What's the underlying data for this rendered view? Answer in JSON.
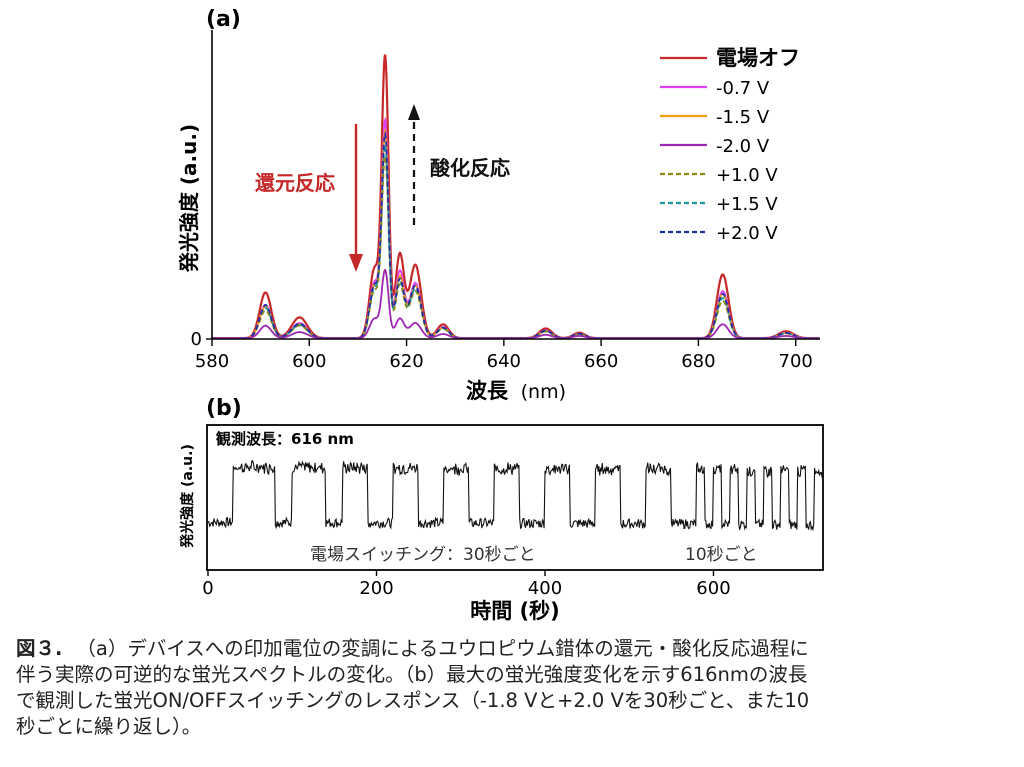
{
  "chart_data": [
    {
      "panel": "(a)",
      "type": "line",
      "xlabel": "波長",
      "xlabel_unit": "(nm)",
      "ylabel": "発光強度 (a.u.)",
      "xlim": [
        580,
        705
      ],
      "ylim": [
        0,
        1.0
      ],
      "x_ticks": [
        580,
        600,
        620,
        640,
        660,
        680,
        700
      ],
      "y_ticks": [
        0
      ],
      "legend_position": "top-right",
      "peaks": [
        {
          "center": 591,
          "width": 1.2
        },
        {
          "center": 598,
          "width": 1.6
        },
        {
          "center": 613.4,
          "width": 1.0
        },
        {
          "center": 615.6,
          "width": 0.7
        },
        {
          "center": 618.6,
          "width": 0.9
        },
        {
          "center": 621.8,
          "width": 1.2
        },
        {
          "center": 627.5,
          "width": 1.2
        },
        {
          "center": 648.6,
          "width": 1.3
        },
        {
          "center": 655.5,
          "width": 1.2
        },
        {
          "center": 685,
          "width": 1.2
        },
        {
          "center": 698,
          "width": 1.5
        }
      ],
      "series": [
        {
          "name": "電場オフ",
          "color": "#c62828",
          "dash": "solid",
          "values": [
            0.165,
            0.075,
            0.25,
            1.0,
            0.3,
            0.265,
            0.05,
            0.035,
            0.02,
            0.23,
            0.025
          ]
        },
        {
          "name": "-0.7 V",
          "color": "#e040fb",
          "dash": "solid",
          "values": [
            0.12,
            0.055,
            0.2,
            0.77,
            0.24,
            0.2,
            0.04,
            0.028,
            0.016,
            0.17,
            0.02
          ]
        },
        {
          "name": "-1.5 V",
          "color": "#f39c12",
          "dash": "solid",
          "values": [
            0.115,
            0.05,
            0.19,
            0.73,
            0.22,
            0.19,
            0.038,
            0.026,
            0.015,
            0.16,
            0.019
          ]
        },
        {
          "name": "-2.0 V",
          "color": "#9c27b0",
          "dash": "solid",
          "values": [
            0.045,
            0.022,
            0.07,
            0.24,
            0.07,
            0.055,
            0.015,
            0.012,
            0.008,
            0.05,
            0.008
          ]
        },
        {
          "name": "+1.0 V",
          "color": "#8a8a1a",
          "dash": "dashed",
          "values": [
            0.1,
            0.045,
            0.17,
            0.64,
            0.19,
            0.17,
            0.034,
            0.024,
            0.014,
            0.135,
            0.017
          ]
        },
        {
          "name": "+1.5 V",
          "color": "#1a9aa0",
          "dash": "dashed",
          "values": [
            0.11,
            0.048,
            0.18,
            0.68,
            0.2,
            0.18,
            0.036,
            0.025,
            0.015,
            0.145,
            0.018
          ]
        },
        {
          "name": "+2.0 V",
          "color": "#1f2fa8",
          "dash": "dashed",
          "values": [
            0.12,
            0.052,
            0.19,
            0.72,
            0.21,
            0.19,
            0.038,
            0.027,
            0.016,
            0.16,
            0.019
          ]
        }
      ],
      "annotations": [
        {
          "text": "還元反応",
          "color": "#c62828"
        },
        {
          "text": "酸化反応",
          "color": "#111111"
        }
      ]
    },
    {
      "panel": "(b)",
      "type": "line",
      "xlabel": "時間 (秒)",
      "ylabel": "発光強度 (a.u.)",
      "xlim": [
        0,
        730
      ],
      "ylim": [
        0,
        1.0
      ],
      "x_ticks": [
        0,
        200,
        400,
        600
      ],
      "series": [
        {
          "color": "#111111",
          "low_level": 0.3,
          "high_level": 0.68
        }
      ],
      "segments": [
        {
          "start": 0,
          "end": 30,
          "state": "low"
        },
        {
          "start": 30,
          "end": 80,
          "state": "high"
        },
        {
          "start": 80,
          "end": 100,
          "state": "low"
        },
        {
          "start": 100,
          "end": 140,
          "state": "high"
        },
        {
          "start": 140,
          "end": 160,
          "state": "low"
        },
        {
          "start": 160,
          "end": 190,
          "state": "high"
        },
        {
          "start": 190,
          "end": 220,
          "state": "low"
        },
        {
          "start": 220,
          "end": 250,
          "state": "high"
        },
        {
          "start": 250,
          "end": 280,
          "state": "low"
        },
        {
          "start": 280,
          "end": 310,
          "state": "high"
        },
        {
          "start": 310,
          "end": 340,
          "state": "low"
        },
        {
          "start": 340,
          "end": 370,
          "state": "high"
        },
        {
          "start": 370,
          "end": 400,
          "state": "low"
        },
        {
          "start": 400,
          "end": 430,
          "state": "high"
        },
        {
          "start": 430,
          "end": 460,
          "state": "low"
        },
        {
          "start": 460,
          "end": 490,
          "state": "high"
        },
        {
          "start": 490,
          "end": 520,
          "state": "low"
        },
        {
          "start": 520,
          "end": 550,
          "state": "high"
        },
        {
          "start": 550,
          "end": 580,
          "state": "low"
        },
        {
          "start": 580,
          "end": 590,
          "state": "high"
        },
        {
          "start": 590,
          "end": 600,
          "state": "low"
        },
        {
          "start": 600,
          "end": 610,
          "state": "high"
        },
        {
          "start": 610,
          "end": 620,
          "state": "low"
        },
        {
          "start": 620,
          "end": 630,
          "state": "high"
        },
        {
          "start": 630,
          "end": 640,
          "state": "low"
        },
        {
          "start": 640,
          "end": 650,
          "state": "high"
        },
        {
          "start": 650,
          "end": 660,
          "state": "low"
        },
        {
          "start": 660,
          "end": 670,
          "state": "high"
        },
        {
          "start": 670,
          "end": 680,
          "state": "low"
        },
        {
          "start": 680,
          "end": 690,
          "state": "high"
        },
        {
          "start": 690,
          "end": 700,
          "state": "low"
        },
        {
          "start": 700,
          "end": 710,
          "state": "high"
        },
        {
          "start": 710,
          "end": 720,
          "state": "low"
        },
        {
          "start": 720,
          "end": 730,
          "state": "high"
        }
      ],
      "annotations": [
        {
          "text": "観測波長：616 nm"
        },
        {
          "text": "電場スイッチング：30秒ごと"
        },
        {
          "text": "10秒ごと"
        }
      ]
    }
  ],
  "caption": {
    "label": "図３.",
    "lines": [
      "（a）デバイスへの印加電位の変調によるユウロピウム錯体の還元・酸化反応過程に",
      "伴う実際の可逆的な蛍光スペクトルの変化。（b）最大の蛍光強度変化を示す616nmの波長",
      "で観測した蛍光ON/OFFスイッチングのレスポンス（-1.8 Vと+2.0 Vを30秒ごと、また10",
      "秒ごとに繰り返し）。"
    ]
  }
}
